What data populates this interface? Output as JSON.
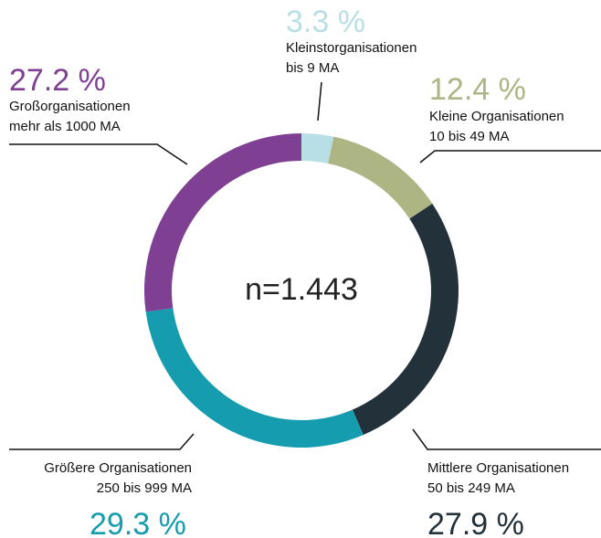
{
  "chart_data": {
    "type": "donut",
    "center_label": "n=1.443",
    "categories": [
      "Kleinstorganisationen\nbis 9 MA",
      "Kleine Organisationen\n10 bis 49 MA",
      "Mittlere Organisationen\n50 bis 249 MA",
      "Größere Organisationen\n250 bis 999 MA",
      "Großorganisationen\nmehr als 1000 MA"
    ],
    "values": [
      3.3,
      12.4,
      27.9,
      29.3,
      27.2
    ],
    "value_labels": [
      "3.3 %",
      "12.4 %",
      "27.9 %",
      "29.3 %",
      "27.2 %"
    ],
    "colors": [
      "#b9dfe6",
      "#adb584",
      "#23313a",
      "#159daf",
      "#7f3f93"
    ]
  }
}
